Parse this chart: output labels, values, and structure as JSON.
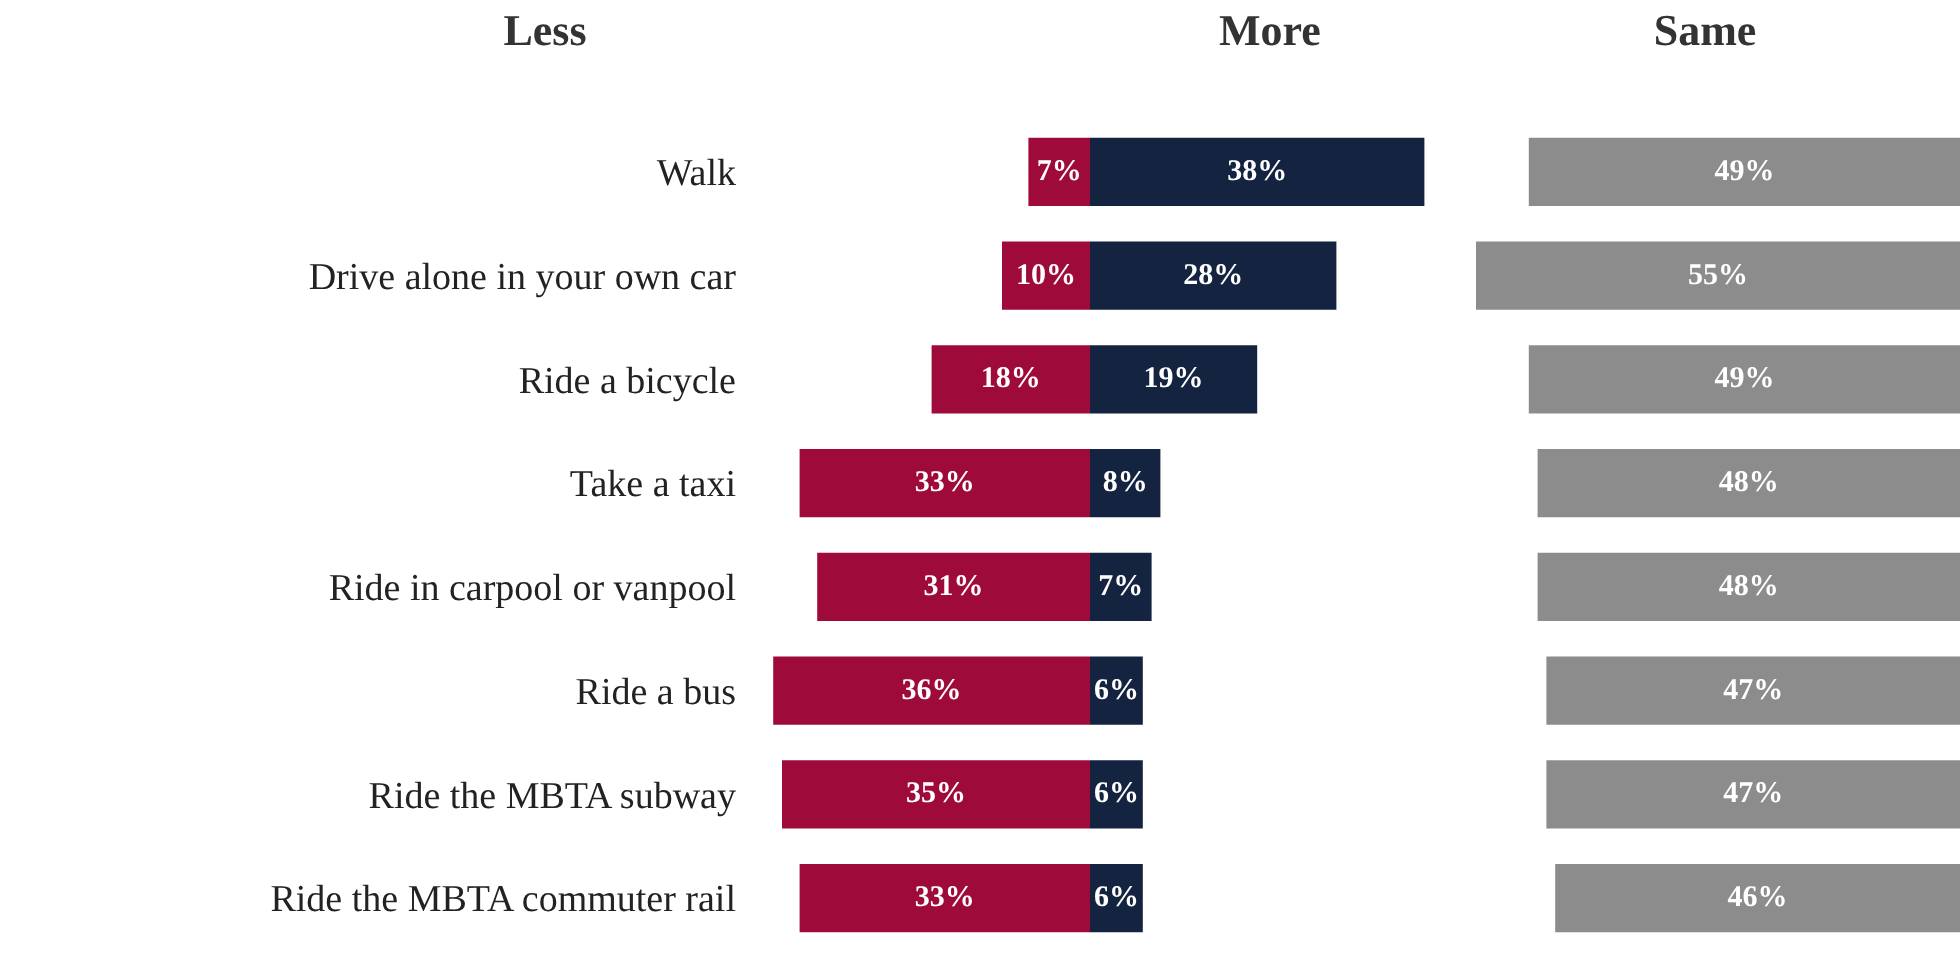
{
  "chart_data": [
    {
      "type": "bar",
      "orientation": "horizontal",
      "title": "Less",
      "categories": [
        "Walk",
        "Drive alone in your own car",
        "Ride a bicycle",
        "Take a taxi",
        "Ride in carpool or vanpool",
        "Ride a bus",
        "Ride the MBTA subway",
        "Ride the MBTA commuter rail"
      ],
      "values": [
        7,
        10,
        18,
        33,
        31,
        36,
        35,
        33
      ],
      "value_labels": [
        "7%",
        "10%",
        "18%",
        "33%",
        "31%",
        "36%",
        "35%",
        "33%"
      ],
      "color": "#9e0b3a",
      "tick_labels": "y"
    },
    {
      "type": "bar",
      "orientation": "horizontal",
      "title": "More",
      "values": [
        38,
        28,
        19,
        8,
        7,
        6,
        6,
        6
      ],
      "value_labels": [
        "38%",
        "28%",
        "19%",
        "8%",
        "7%",
        "6%",
        "6%",
        "6%"
      ],
      "color": "#14233f",
      "tick_labels": false
    },
    {
      "type": "bar",
      "orientation": "horizontal",
      "title": "Same",
      "values": [
        49,
        55,
        49,
        48,
        48,
        47,
        47,
        46
      ],
      "value_labels": [
        "49%",
        "55%",
        "49%",
        "48%",
        "48%",
        "47%",
        "47%",
        "46%"
      ],
      "color": "#8c8c8c",
      "tick_labels": false
    }
  ]
}
